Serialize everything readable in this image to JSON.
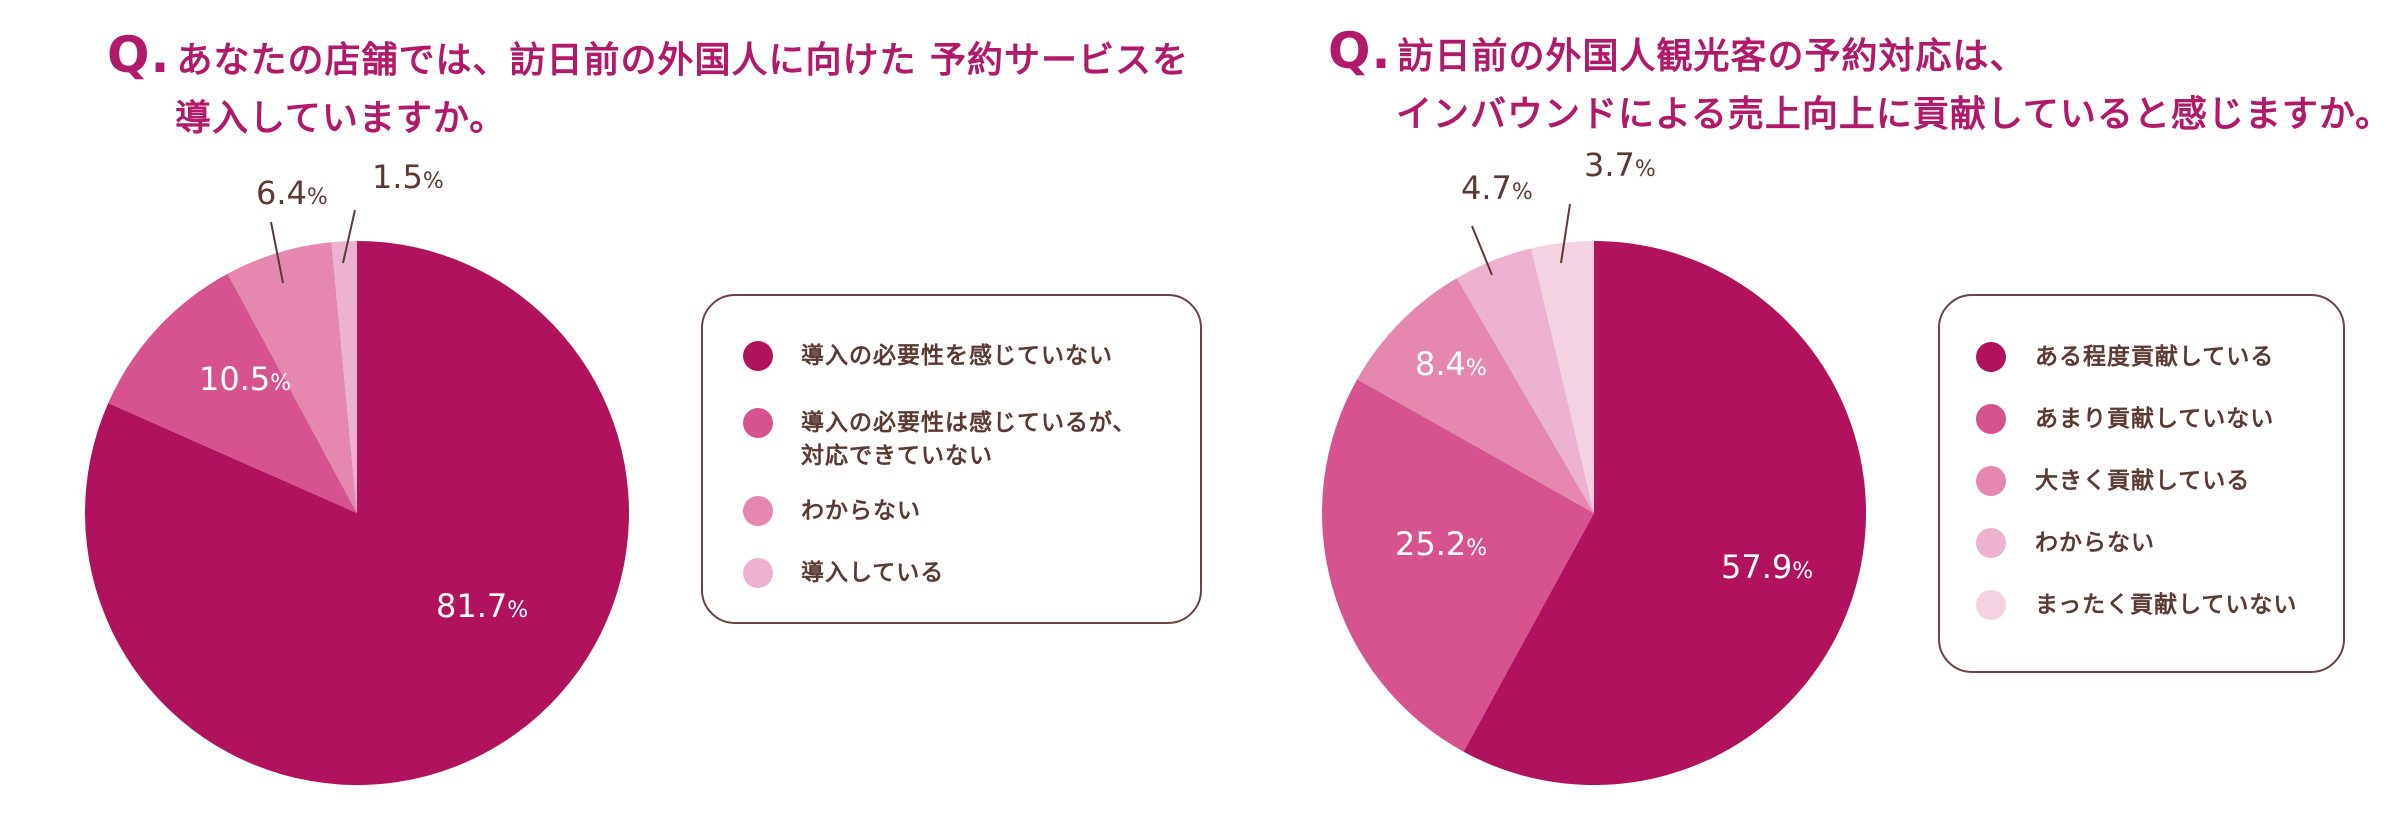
{
  "colors": {
    "title": "#b11a6b",
    "label_text": "#5b3a33",
    "slice_1": "#b0125e",
    "slice_2": "#d6538f",
    "slice_3": "#e587ae",
    "slice_4": "#edb2cf",
    "slice_5": "#f4d2e1"
  },
  "chart_data": [
    {
      "type": "pie",
      "q_mark": "Q.",
      "title_line1": "あなたの店舗では、訪日前の外国人に向けた 予約サービスを",
      "title_line2": "導入していますか。",
      "categories": [
        "導入の必要性を感じていない",
        "導入の必要性は感じているが、対応できていない",
        "わからない",
        "導入している"
      ],
      "legend_lines": [
        [
          "導入の必要性を感じていない"
        ],
        [
          "導入の必要性は感じているが、",
          "対応できていない"
        ],
        [
          "わからない"
        ],
        [
          "導入している"
        ]
      ],
      "values": [
        81.7,
        10.5,
        6.4,
        1.5
      ],
      "labels": [
        "81.7",
        "10.5",
        "6.4",
        "1.5"
      ],
      "unit": "%",
      "start": "top",
      "direction": "clockwise",
      "legend_placement": "right"
    },
    {
      "type": "pie",
      "q_mark": "Q.",
      "title_line1": "訪日前の外国人観光客の予約対応は、",
      "title_line2": "インバウンドによる売上向上に貢献していると感じますか。",
      "categories": [
        "ある程度貢献している",
        "あまり貢献していない",
        "大きく貢献している",
        "わからない",
        "まったく貢献していない"
      ],
      "legend_lines": [
        [
          "ある程度貢献している"
        ],
        [
          "あまり貢献していない"
        ],
        [
          "大きく貢献している"
        ],
        [
          "わからない"
        ],
        [
          "まったく貢献していない"
        ]
      ],
      "values": [
        57.9,
        25.2,
        8.4,
        4.7,
        3.7
      ],
      "labels": [
        "57.9",
        "25.2",
        "8.4",
        "4.7",
        "3.7"
      ],
      "unit": "%",
      "start": "top",
      "direction": "clockwise",
      "legend_placement": "right"
    }
  ]
}
